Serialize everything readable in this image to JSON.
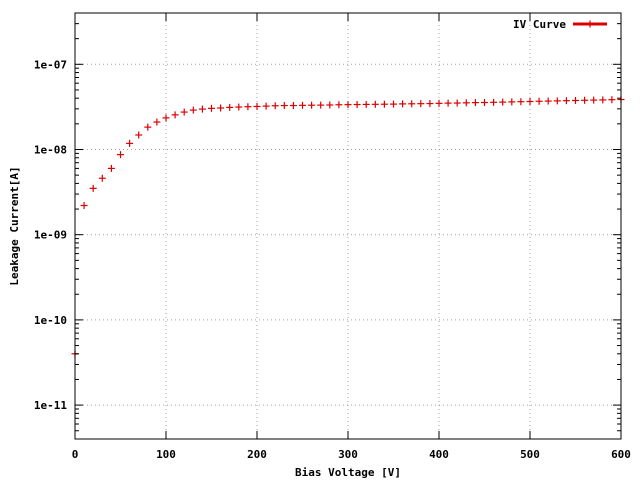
{
  "chart_data": {
    "type": "scatter",
    "title": "",
    "xlabel": "Bias Voltage [V]",
    "ylabel": "Leakage Current[A]",
    "xlim": [
      0,
      600
    ],
    "ylim": [
      4e-12,
      4e-07
    ],
    "yscale": "log",
    "grid": true,
    "legend_position": "top-right",
    "x_ticks": [
      0,
      100,
      200,
      300,
      400,
      500,
      600
    ],
    "x_tick_labels": [
      "0",
      "100",
      "200",
      "300",
      "400",
      "500",
      "600"
    ],
    "y_ticks": [
      1e-11,
      1e-10,
      1e-09,
      1e-08,
      1e-07
    ],
    "y_tick_labels": [
      "1e-11",
      "1e-10",
      "1e-09",
      "1e-08",
      "1e-07"
    ],
    "series": [
      {
        "name": "IV Curve",
        "color": "#dd0000",
        "marker": "plus",
        "x": [
          0,
          10,
          20,
          30,
          40,
          50,
          60,
          70,
          80,
          90,
          100,
          110,
          120,
          130,
          140,
          150,
          160,
          170,
          180,
          190,
          200,
          210,
          220,
          230,
          240,
          250,
          260,
          270,
          280,
          290,
          300,
          310,
          320,
          330,
          340,
          350,
          360,
          370,
          380,
          390,
          400,
          410,
          420,
          430,
          440,
          450,
          460,
          470,
          480,
          490,
          500,
          510,
          520,
          530,
          540,
          550,
          560,
          570,
          580,
          590,
          600
        ],
        "y": [
          4e-11,
          2.2e-09,
          3.5e-09,
          4.6e-09,
          6e-09,
          8.7e-09,
          1.18e-08,
          1.48e-08,
          1.83e-08,
          2.1e-08,
          2.35e-08,
          2.55e-08,
          2.75e-08,
          2.9e-08,
          2.98e-08,
          3.04e-08,
          3.07e-08,
          3.12e-08,
          3.15e-08,
          3.18e-08,
          3.2e-08,
          3.23e-08,
          3.26e-08,
          3.28e-08,
          3.28e-08,
          3.3e-08,
          3.31e-08,
          3.32e-08,
          3.33e-08,
          3.35e-08,
          3.36e-08,
          3.37e-08,
          3.38e-08,
          3.39e-08,
          3.4e-08,
          3.41e-08,
          3.43e-08,
          3.44e-08,
          3.45e-08,
          3.46e-08,
          3.48e-08,
          3.5e-08,
          3.51e-08,
          3.53e-08,
          3.55e-08,
          3.56e-08,
          3.58e-08,
          3.6e-08,
          3.62e-08,
          3.64e-08,
          3.66e-08,
          3.68e-08,
          3.7e-08,
          3.72e-08,
          3.74e-08,
          3.76e-08,
          3.78e-08,
          3.8e-08,
          3.82e-08,
          3.84e-08,
          3.86e-08
        ]
      }
    ]
  }
}
